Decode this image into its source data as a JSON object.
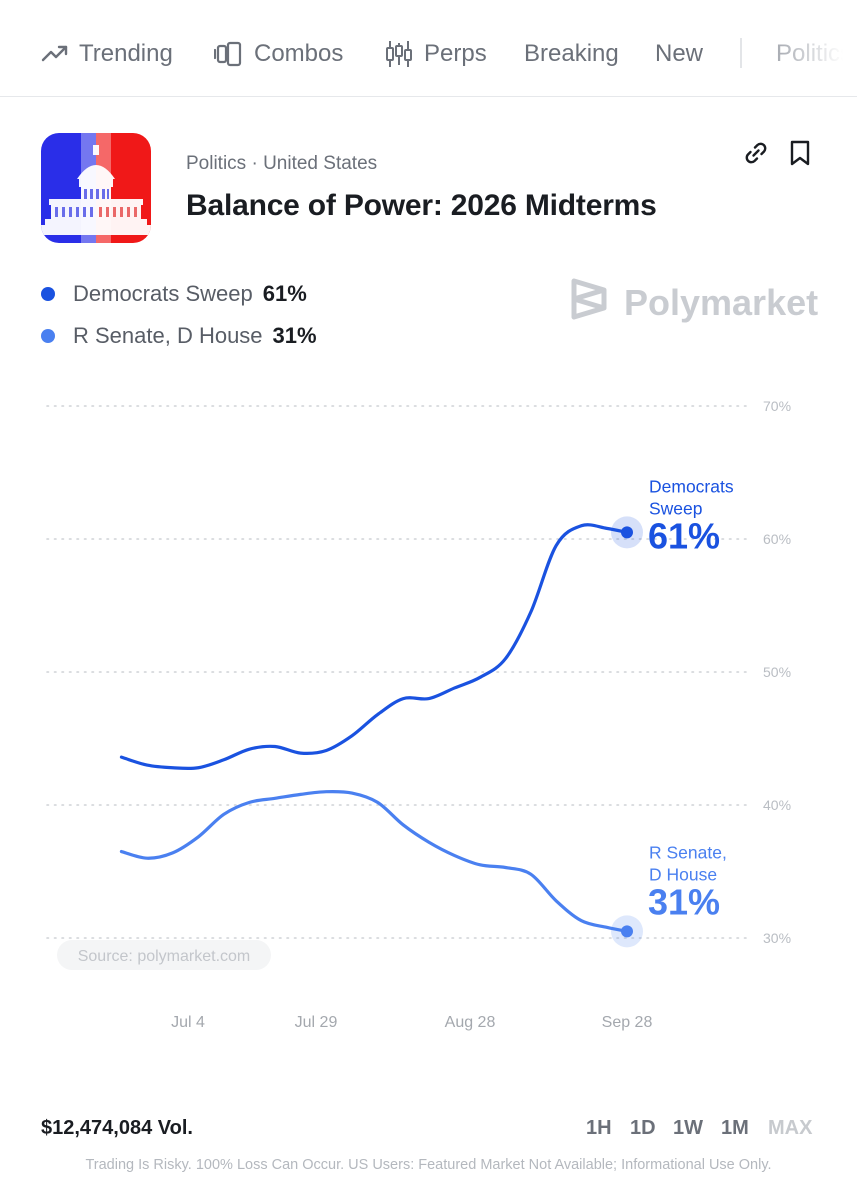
{
  "nav": {
    "items": [
      {
        "label": "Trending",
        "icon": "trending-icon"
      },
      {
        "label": "Combos",
        "icon": "combos-icon"
      },
      {
        "label": "Perps",
        "icon": "candlestick-icon"
      },
      {
        "label": "Breaking"
      },
      {
        "label": "New"
      },
      {
        "label": "Politics"
      }
    ]
  },
  "market": {
    "breadcrumb": "Politics · United States",
    "title": "Balance of Power: 2026 Midterms",
    "icon": "capitol-icon",
    "actions": {
      "link": "link-icon",
      "bookmark": "bookmark-icon"
    }
  },
  "legend": [
    {
      "name": "Democrats Sweep",
      "value": "61%",
      "color": "#1a52e0"
    },
    {
      "name": "R Senate, D House",
      "value": "31%",
      "color": "#4a80f0"
    }
  ],
  "watermark": {
    "brand": "Polymarket",
    "color": "#c9ccd1"
  },
  "chart_data": {
    "type": "line",
    "ylim": [
      30,
      70
    ],
    "yticks": [
      "70%",
      "60%",
      "50%",
      "40%",
      "30%"
    ],
    "xticks": [
      "Jul 4",
      "Jul 29",
      "Aug 28",
      "Sep 28"
    ],
    "grid": true,
    "source": "Source: polymarket.com",
    "series": [
      {
        "name": "Democrats Sweep",
        "label_line1": "Democrats",
        "label_line2": "Sweep",
        "end_label": "61%",
        "color": "#1a52e0",
        "x": [
          "Jun 21",
          "Jun 26",
          "Jul 1",
          "Jul 6",
          "Jul 11",
          "Jul 16",
          "Jul 21",
          "Jul 26",
          "Jul 31",
          "Aug 5",
          "Aug 10",
          "Aug 15",
          "Aug 20",
          "Aug 25",
          "Aug 30",
          "Sep 4",
          "Sep 9",
          "Sep 14",
          "Sep 19",
          "Sep 24",
          "Sep 28"
        ],
        "values": [
          43.6,
          43.0,
          42.8,
          42.8,
          43.4,
          44.2,
          44.4,
          43.9,
          44.1,
          45.2,
          46.8,
          48.0,
          48.0,
          48.8,
          49.6,
          51.0,
          54.5,
          59.5,
          61.0,
          60.8,
          60.5
        ]
      },
      {
        "name": "R Senate, D House",
        "label_line1": "R Senate,",
        "label_line2": "D House",
        "end_label": "31%",
        "color": "#4a80f0",
        "x": [
          "Jun 21",
          "Jun 26",
          "Jul 1",
          "Jul 6",
          "Jul 11",
          "Jul 16",
          "Jul 21",
          "Jul 26",
          "Jul 31",
          "Aug 5",
          "Aug 10",
          "Aug 15",
          "Aug 20",
          "Aug 25",
          "Aug 30",
          "Sep 4",
          "Sep 9",
          "Sep 14",
          "Sep 19",
          "Sep 24",
          "Sep 28"
        ],
        "values": [
          36.5,
          36.0,
          36.4,
          37.6,
          39.3,
          40.2,
          40.5,
          40.8,
          41.0,
          40.9,
          40.2,
          38.5,
          37.2,
          36.2,
          35.5,
          35.3,
          34.8,
          32.8,
          31.3,
          30.8,
          30.5
        ]
      }
    ]
  },
  "footer": {
    "volume": "$12,474,084 Vol.",
    "ranges": [
      "1H",
      "1D",
      "1W",
      "1M",
      "MAX"
    ],
    "selected_range": "MAX",
    "disclaimer": "Trading Is Risky. 100% Loss Can Occur. US Users: Featured Market Not Available; Informational Use Only."
  }
}
